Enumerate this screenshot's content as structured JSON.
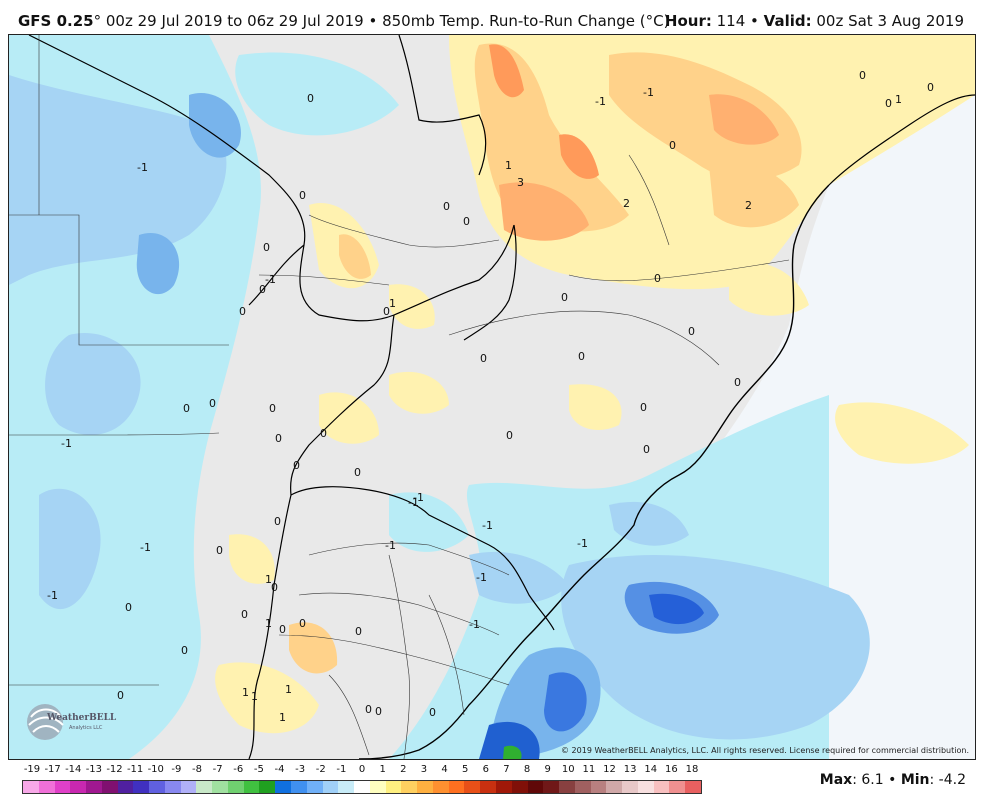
{
  "header": {
    "model": "GFS 0.25",
    "degree": "°",
    "run_text": " 00z 29 Jul 2019 to 06z 29 Jul 2019 • 850mb Temp. Run-to-Run Change (°C)",
    "hour_label": "Hour:",
    "hour_value": " 114 • ",
    "valid_label": "Valid:",
    "valid_value": " 00z Sat 3 Aug 2019"
  },
  "map": {
    "copyright": "© 2019 WeatherBELL Analytics, LLC. All rights reserved. License required for commercial distribution.",
    "logo_text": "WeatherBELL",
    "logo_subtext": "Analytics LLC",
    "values": [
      "0",
      "-1",
      "0",
      "-1",
      "0",
      "0",
      "1",
      "3",
      "2",
      "2",
      "0",
      "-1",
      "1",
      "0",
      "0",
      "0",
      "0",
      "0",
      "1",
      "0",
      "0",
      "0",
      "0",
      "0",
      "0",
      "0",
      "0",
      "-1",
      "0",
      "0",
      "0",
      "0",
      "0",
      "-1",
      "-1",
      "0",
      "0",
      "0",
      "0",
      "-1",
      "-1",
      "-1",
      "0",
      "-1",
      "0",
      "-1",
      "0",
      "0",
      "1",
      "1",
      "1",
      "1",
      "1",
      "0",
      "0",
      "-1",
      "0",
      "0",
      "0",
      "0",
      "0",
      "1",
      "0",
      "0",
      "-1",
      "0",
      "-1"
    ]
  },
  "legend": {
    "labels": [
      "-19",
      "-17",
      "-14",
      "-13",
      "-12",
      "-11",
      "-10",
      "-9",
      "-8",
      "-7",
      "-6",
      "-5",
      "-4",
      "-3",
      "-2",
      "-1",
      "0",
      "1",
      "2",
      "3",
      "4",
      "5",
      "6",
      "7",
      "8",
      "9",
      "10",
      "11",
      "12",
      "13",
      "14",
      "16",
      "18"
    ],
    "colors": [
      "#f8a8e8",
      "#f070d8",
      "#e040c8",
      "#c828b0",
      "#a01890",
      "#801070",
      "#5020a0",
      "#4030c0",
      "#6060e0",
      "#8888f0",
      "#b0b0f8",
      "#c8e8c8",
      "#a0e0a0",
      "#70d070",
      "#40c040",
      "#20a020",
      "#1070e0",
      "#4090f0",
      "#70b0f8",
      "#a0d0f8",
      "#c8ecf8",
      "#ffffff",
      "#ffffc0",
      "#fff080",
      "#ffd060",
      "#ffb040",
      "#ff9030",
      "#ff7020",
      "#e85018",
      "#c83010",
      "#a01808",
      "#801008",
      "#600808",
      "#701818",
      "#884040",
      "#a06060",
      "#b88080",
      "#d0a8a8",
      "#e8c8c8",
      "#f8e0e0",
      "#f8c0c0",
      "#f09090",
      "#e86060"
    ],
    "max_label": "Max",
    "max_value": ": 6.1 • ",
    "min_label": "Min",
    "min_value": ": -4.2"
  }
}
